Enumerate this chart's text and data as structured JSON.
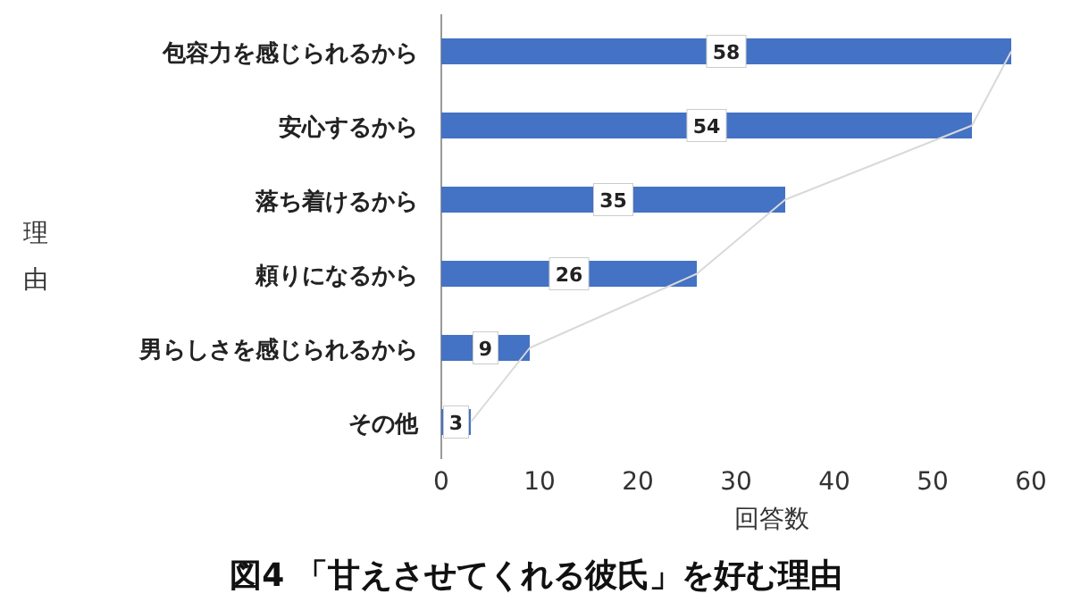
{
  "chart_data": {
    "type": "bar",
    "orientation": "horizontal",
    "title": "図4 「甘えさせてくれる彼氏」を好む理由",
    "xlabel": "回答数",
    "ylabel": "理由",
    "categories": [
      "包容力を感じられるから",
      "安心するから",
      "落ち着けるから",
      "頼りになるから",
      "男らしさを感じられるから",
      "その他"
    ],
    "series": [
      {
        "color": "#4472c4",
        "values": [
          58,
          54,
          35,
          26,
          9,
          3
        ],
        "value_labels": [
          "58",
          "54",
          "35",
          "26",
          "9",
          "3"
        ]
      },
      {
        "type": "line",
        "color": "#d9d9d9",
        "values": [
          58,
          54,
          35,
          26,
          9,
          3
        ]
      }
    ],
    "xlim": [
      0,
      60
    ],
    "xticks": [
      0,
      10,
      20,
      30,
      40,
      50,
      60
    ]
  }
}
